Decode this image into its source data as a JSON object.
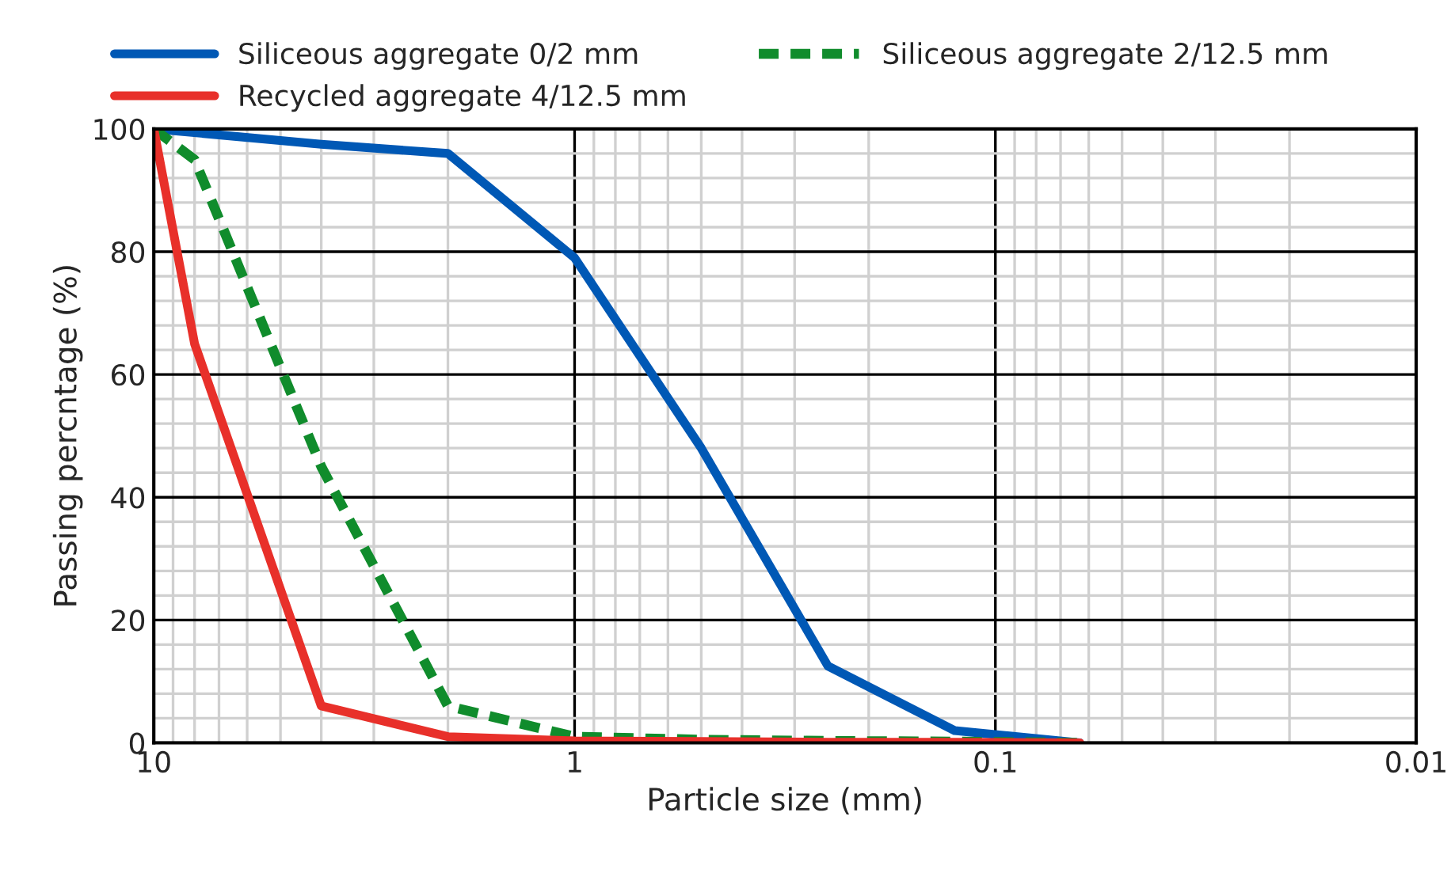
{
  "chart_data": {
    "type": "line",
    "xlabel": "Particle size (mm)",
    "ylabel": "Passing percntage (%)",
    "log": "x",
    "xlim": [
      10,
      0.01
    ],
    "xticks": [
      10,
      1,
      0.1,
      0.01
    ],
    "ylim": [
      0,
      100
    ],
    "yticks": [
      0,
      20,
      40,
      60,
      80,
      100
    ],
    "grid": true,
    "legend": "top",
    "marker": "none",
    "series": [
      {
        "name": "Siliceous aggregate 0/2 mm",
        "color": "#0058b5",
        "line_style": "solid",
        "x": [
          10,
          4,
          2,
          1,
          0.5,
          0.25,
          0.125,
          0.063
        ],
        "values": [
          100,
          97.5,
          96,
          79,
          48,
          12.5,
          2,
          0
        ]
      },
      {
        "name": "Siliceous aggregate 2/12.5 mm",
        "color": "#108c2c",
        "line_style": "dashed",
        "x": [
          10,
          8,
          4,
          2,
          1,
          0.5,
          0.25,
          0.125,
          0.063
        ],
        "values": [
          100,
          95,
          45,
          6,
          1,
          0.5,
          0.3,
          0.2,
          0
        ]
      },
      {
        "name": "Recycled aggregate 4/12.5 mm",
        "color": "#e8302a",
        "line_style": "solid",
        "x": [
          10,
          8,
          4,
          2,
          1,
          0.5,
          0.25,
          0.125,
          0.063
        ],
        "values": [
          100,
          65,
          6,
          1,
          0.3,
          0.2,
          0.1,
          0.1,
          0
        ]
      }
    ]
  }
}
